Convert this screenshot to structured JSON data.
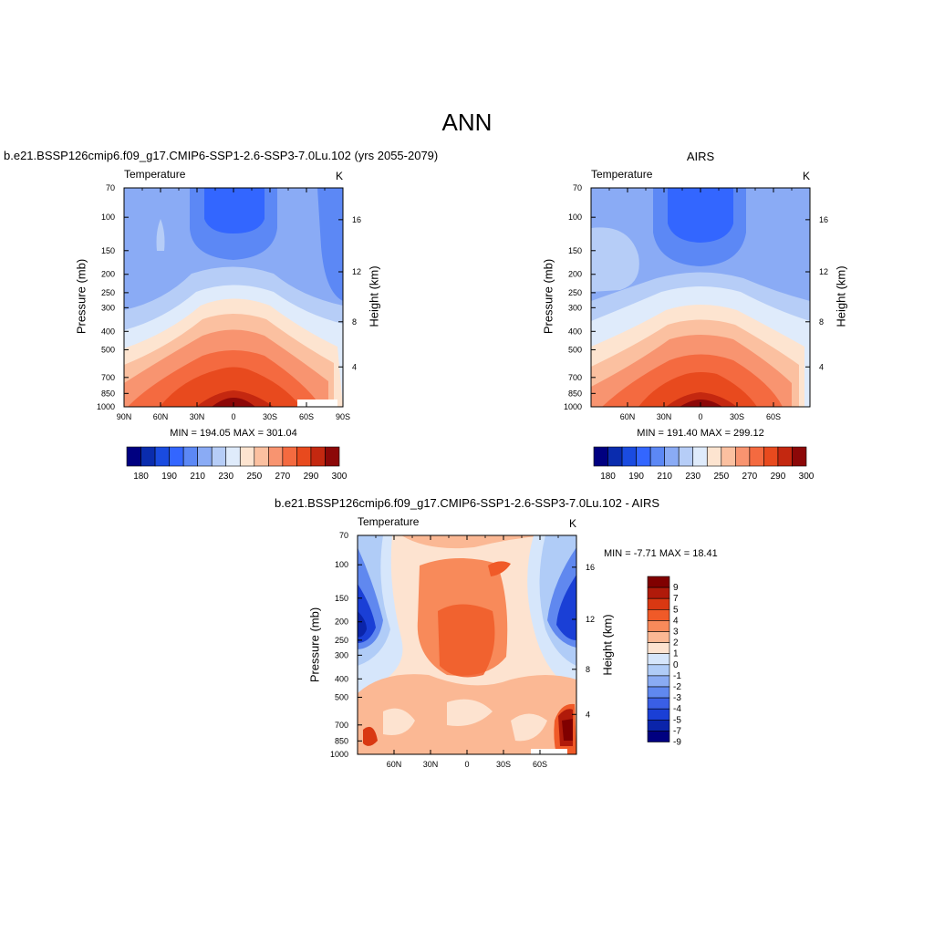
{
  "figure": {
    "title": "ANN",
    "panels": [
      {
        "id": "model",
        "title": "b.e21.BSSP126cmip6.f09_g17.CMIP6-SSP1-2.6-SSP3-7.0Lu.102 (yrs 2055-2079)",
        "variable": "Temperature",
        "units": "K",
        "ylabel": "Pressure (mb)",
        "y2label": "Height (km)",
        "minmax": "MIN = 194.05  MAX = 301.04"
      },
      {
        "id": "obs",
        "title": "AIRS",
        "variable": "Temperature",
        "units": "K",
        "ylabel": "Pressure (mb)",
        "y2label": "Height (km)",
        "minmax": "MIN = 191.40  MAX = 299.12"
      },
      {
        "id": "diff",
        "title": "b.e21.BSSP126cmip6.f09_g17.CMIP6-SSP1-2.6-SSP3-7.0Lu.102 - AIRS",
        "variable": "Temperature",
        "units": "K",
        "ylabel": "Pressure (mb)",
        "y2label": "Height (km)",
        "minmax": "MIN =  -7.71  MAX =  18.41"
      }
    ]
  },
  "chart_data": [
    {
      "type": "heatmap",
      "panel": "model",
      "x_ticks": [
        "90N",
        "60N",
        "30N",
        "0",
        "30S",
        "60S",
        "90S"
      ],
      "y_ticks": [
        "70",
        "100",
        "150",
        "200",
        "250",
        "300",
        "400",
        "500",
        "700",
        "850",
        "1000"
      ],
      "y2_ticks": [
        "16",
        "12",
        "8",
        "4"
      ],
      "colorbar_labels": [
        "180",
        "190",
        "210",
        "230",
        "250",
        "270",
        "290",
        "300"
      ],
      "min": 194.05,
      "max": 301.04
    },
    {
      "type": "heatmap",
      "panel": "obs",
      "x_ticks": [
        "60N",
        "30N",
        "0",
        "30S",
        "60S"
      ],
      "y_ticks": [
        "70",
        "100",
        "150",
        "200",
        "250",
        "300",
        "400",
        "500",
        "700",
        "850",
        "1000"
      ],
      "y2_ticks": [
        "16",
        "12",
        "8",
        "4"
      ],
      "colorbar_labels": [
        "180",
        "190",
        "210",
        "230",
        "250",
        "270",
        "290",
        "300"
      ],
      "min": 191.4,
      "max": 299.12
    },
    {
      "type": "heatmap",
      "panel": "diff",
      "x_ticks": [
        "60N",
        "30N",
        "0",
        "30S",
        "60S"
      ],
      "y_ticks": [
        "70",
        "100",
        "150",
        "200",
        "250",
        "300",
        "400",
        "500",
        "700",
        "850",
        "1000"
      ],
      "y2_ticks": [
        "16",
        "12",
        "8",
        "4"
      ],
      "colorbar_labels": [
        "9",
        "7",
        "5",
        "4",
        "3",
        "2",
        "1",
        "0",
        "-1",
        "-2",
        "-3",
        "-4",
        "-5",
        "-7",
        "-9"
      ],
      "min": -7.71,
      "max": 18.41
    }
  ],
  "colors": {
    "abs_scale": [
      "#000080",
      "#0a2cae",
      "#1a4be0",
      "#3366ff",
      "#5c88f5",
      "#8aabf5",
      "#b6cdf7",
      "#dfebfb",
      "#fde4d0",
      "#fbc0a0",
      "#f89470",
      "#f46a40",
      "#e84a1e",
      "#c42810",
      "#8c0808"
    ],
    "diff_scale": [
      "#800000",
      "#b01a0a",
      "#d93812",
      "#f05a28",
      "#f88a5a",
      "#fbb894",
      "#fde3d0",
      "#d6e6fb",
      "#b0ccf7",
      "#8aabf3",
      "#6088ef",
      "#3a5fe6",
      "#1a3fd6",
      "#0a24aa",
      "#000080"
    ]
  }
}
